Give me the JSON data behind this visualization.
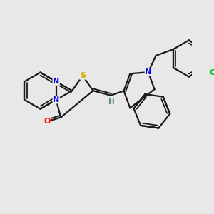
{
  "bg_color": "#e8e8e8",
  "bond_color": "#1a1a1a",
  "bond_width": 1.6,
  "atoms": {
    "N_blue": "#0000ee",
    "S_yellow": "#ccaa00",
    "O_red": "#ff0000",
    "Cl_green": "#00bb00",
    "H_gray": "#558888"
  },
  "xlim": [
    0,
    10
  ],
  "ylim": [
    0,
    10
  ]
}
